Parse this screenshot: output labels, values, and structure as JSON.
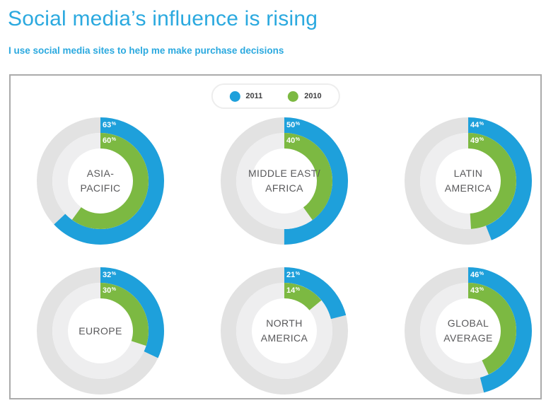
{
  "page": {
    "title": "Social media’s influence is rising",
    "subtitle": "I use social media sites to help me make purchase decisions"
  },
  "colors": {
    "accent_blue": "#1EA0DB",
    "accent_green": "#7CB942",
    "heading_blue": "#2BA9DF",
    "ring_outer_gray": "#E2E2E2",
    "ring_inner_gray": "#EEEEEF",
    "center_text": "#59595B",
    "panel_border": "#ABABAB"
  },
  "chart_data": {
    "type": "donut",
    "unit": "%",
    "title": "Social media’s influence is rising",
    "subtitle": "I use social media sites to help me make purchase decisions",
    "legend_position": "top-center",
    "rings": "outer = 2011, inner = 2010, arcs start at 12 o'clock and run clockwise",
    "series": [
      {
        "name": "2011",
        "color": "#1EA0DB",
        "ring": "outer"
      },
      {
        "name": "2010",
        "color": "#7CB942",
        "ring": "inner"
      }
    ],
    "regions": [
      {
        "label_lines": [
          "ASIA-",
          "PACIFIC"
        ],
        "values": [
          63,
          60
        ]
      },
      {
        "label_lines": [
          "MIDDLE EAST/",
          "AFRICA"
        ],
        "values": [
          50,
          40
        ]
      },
      {
        "label_lines": [
          "LATIN",
          "AMERICA"
        ],
        "values": [
          44,
          49
        ]
      },
      {
        "label_lines": [
          "EUROPE"
        ],
        "values": [
          32,
          30
        ]
      },
      {
        "label_lines": [
          "NORTH",
          "AMERICA"
        ],
        "values": [
          21,
          14
        ]
      },
      {
        "label_lines": [
          "GLOBAL",
          "AVERAGE"
        ],
        "values": [
          46,
          43
        ]
      }
    ]
  }
}
